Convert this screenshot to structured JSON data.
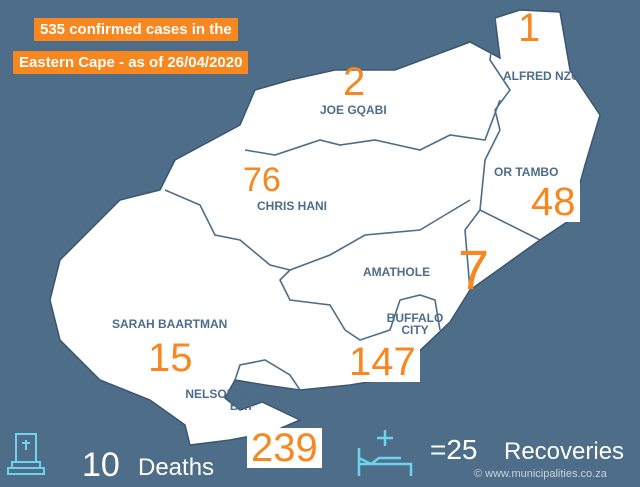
{
  "header": {
    "line1": "535 confirmed cases in the",
    "line2": "Eastern Cape - as of 26/04/2020"
  },
  "districts": [
    {
      "name": "ALFRED NZO",
      "cases": "1"
    },
    {
      "name": "JOE GQABI",
      "cases": "2"
    },
    {
      "name": "OR TAMBO",
      "cases": "48"
    },
    {
      "name": "CHRIS HANI",
      "cases": "76"
    },
    {
      "name": "AMATHOLE",
      "cases": "7"
    },
    {
      "name": "BUFFALO CITY",
      "cases": "147"
    },
    {
      "name": "SARAH BAARTMAN",
      "cases": "15"
    },
    {
      "name": "NELSON MANDELA BAY",
      "cases": "239"
    }
  ],
  "footer": {
    "deaths_value": "10",
    "deaths_label": "Deaths",
    "recoveries_value": "=25",
    "recoveries_label": "Recoveries",
    "credit": "© www.municipalities.co.za"
  },
  "colors": {
    "background": "#4d6d89",
    "accent": "#f7871e",
    "icon": "#6fd3ee"
  },
  "icons": [
    "tombstone-icon",
    "hospital-bed-icon"
  ]
}
